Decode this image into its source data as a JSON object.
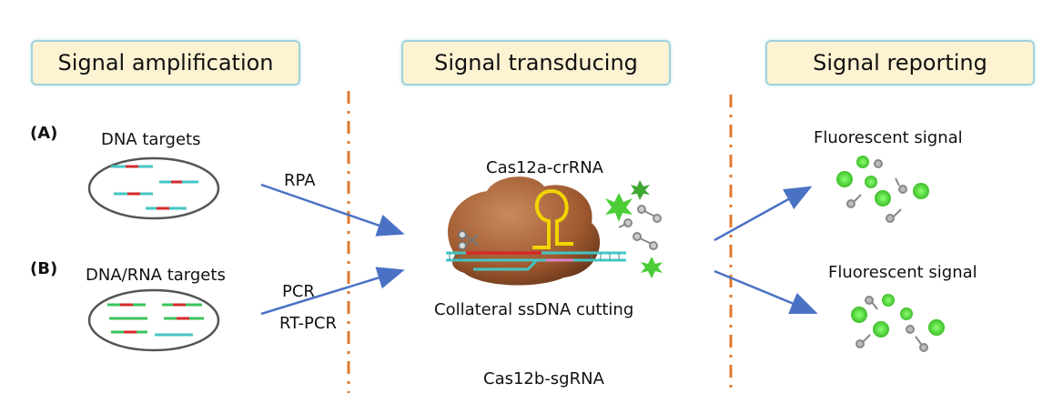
{
  "stages": {
    "amplification": "Signal amplification",
    "transducing": "Signal transducing",
    "reporting": "Signal reporting"
  },
  "panels": {
    "a": "(A)",
    "b": "(B)"
  },
  "targets": {
    "dna": "DNA targets",
    "dna_rna": "DNA/RNA targets"
  },
  "methods": {
    "rpa": "RPA",
    "pcr": "PCR",
    "rt_pcr": "RT-PCR"
  },
  "center": {
    "cas12a": "Cas12a-crRNA",
    "collateral": "Collateral ssDNA cutting",
    "cas12b": "Cas12b-sgRNA"
  },
  "outputs": {
    "top": "Fluorescent signal",
    "bottom": "Fluorescent signal"
  },
  "colors": {
    "box_fill": "#fdf3d3",
    "box_border": "#9fd3dd",
    "arrow": "#4a72c4",
    "divider": "#e07a2e",
    "protein": "#a9643a",
    "crRNA": "#f1d400",
    "strand": "#45c5c5",
    "target_red": "#d42a2a",
    "fluor_green": "#4ccd38"
  }
}
